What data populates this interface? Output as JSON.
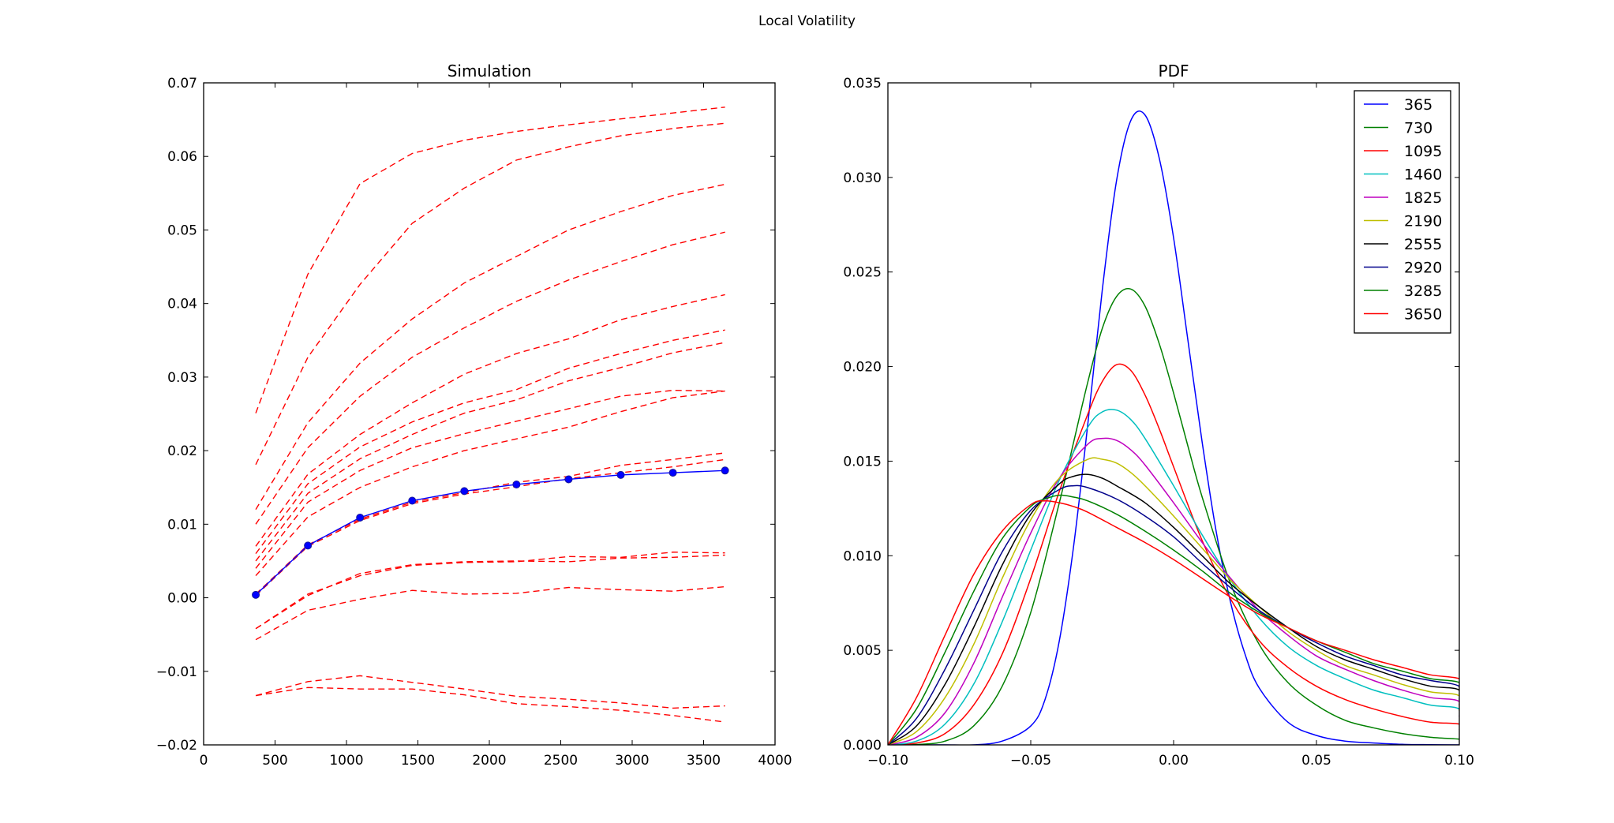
{
  "figure": {
    "title": "Local Volatility"
  },
  "chart_data": [
    {
      "type": "line",
      "title": "Simulation",
      "xlabel": "",
      "ylabel": "",
      "xlim": [
        0,
        4000
      ],
      "ylim": [
        -0.02,
        0.07
      ],
      "xticks": [
        0,
        500,
        1000,
        1500,
        2000,
        2500,
        3000,
        3500,
        4000
      ],
      "xtick_labels": [
        "0",
        "500",
        "1000",
        "1500",
        "2000",
        "2500",
        "3000",
        "3500",
        "4000"
      ],
      "yticks": [
        -0.02,
        -0.01,
        0.0,
        0.01,
        0.02,
        0.03,
        0.04,
        0.05,
        0.06,
        0.07
      ],
      "ytick_labels": [
        "−0.02",
        "−0.01",
        "0.00",
        "0.01",
        "0.02",
        "0.03",
        "0.04",
        "0.05",
        "0.06",
        "0.07"
      ],
      "grid": false,
      "x": [
        365,
        730,
        1095,
        1460,
        1825,
        2190,
        2555,
        2920,
        3285,
        3650
      ],
      "series": [
        {
          "style": "dashed",
          "color": "#ff0000",
          "values": [
            0.0251,
            0.044,
            0.0563,
            0.0604,
            0.0622,
            0.0634,
            0.0643,
            0.0651,
            0.0659,
            0.0667
          ]
        },
        {
          "style": "dashed",
          "color": "#ff0000",
          "values": [
            0.0181,
            0.0327,
            0.0426,
            0.0509,
            0.0557,
            0.0595,
            0.0613,
            0.0628,
            0.0638,
            0.0645
          ]
        },
        {
          "style": "dashed",
          "color": "#ff0000",
          "values": [
            0.012,
            0.0238,
            0.0319,
            0.0379,
            0.0428,
            0.0464,
            0.05,
            0.0525,
            0.0547,
            0.0562
          ]
        },
        {
          "style": "dashed",
          "color": "#ff0000",
          "values": [
            0.01,
            0.0204,
            0.0274,
            0.0327,
            0.0367,
            0.0403,
            0.0432,
            0.0457,
            0.048,
            0.0497
          ]
        },
        {
          "style": "dashed",
          "color": "#ff0000",
          "values": [
            0.007,
            0.0168,
            0.0222,
            0.0265,
            0.0304,
            0.0332,
            0.0352,
            0.0378,
            0.0396,
            0.0412
          ]
        },
        {
          "style": "dashed",
          "color": "#ff0000",
          "values": [
            0.006,
            0.0155,
            0.0205,
            0.0239,
            0.0265,
            0.0283,
            0.0312,
            0.0332,
            0.035,
            0.0364
          ]
        },
        {
          "style": "dashed",
          "color": "#ff0000",
          "values": [
            0.005,
            0.0142,
            0.0189,
            0.0222,
            0.0251,
            0.0269,
            0.0295,
            0.0313,
            0.0333,
            0.0347
          ]
        },
        {
          "style": "dashed",
          "color": "#ff0000",
          "values": [
            0.004,
            0.013,
            0.0173,
            0.0204,
            0.0223,
            0.024,
            0.0257,
            0.0274,
            0.0282,
            0.0281
          ]
        },
        {
          "style": "dashed",
          "color": "#ff0000",
          "values": [
            0.003,
            0.011,
            0.015,
            0.0178,
            0.02,
            0.0216,
            0.0232,
            0.0253,
            0.0272,
            0.0281
          ]
        },
        {
          "style": "dashed",
          "color": "#ff0000",
          "values": [
            0.0005,
            0.0072,
            0.0107,
            0.013,
            0.0143,
            0.0157,
            0.0165,
            0.018,
            0.0188,
            0.0197
          ]
        },
        {
          "style": "dashed",
          "color": "#ff0000",
          "values": [
            0.0003,
            0.007,
            0.0105,
            0.0128,
            0.0141,
            0.0151,
            0.0162,
            0.017,
            0.0178,
            0.0188
          ]
        },
        {
          "style": "dashed",
          "color": "#ff0000",
          "values": [
            -0.0042,
            0.0005,
            0.003,
            0.0044,
            0.0048,
            0.0049,
            0.0056,
            0.0055,
            0.0062,
            0.0061
          ]
        },
        {
          "style": "dashed",
          "color": "#ff0000",
          "values": [
            -0.0042,
            0.0003,
            0.0033,
            0.0045,
            0.0049,
            0.005,
            0.0049,
            0.0054,
            0.0055,
            0.0058
          ]
        },
        {
          "style": "dashed",
          "color": "#ff0000",
          "values": [
            -0.0057,
            -0.0017,
            -0.0002,
            0.001,
            0.0005,
            0.0006,
            0.0014,
            0.0011,
            0.0009,
            0.0015
          ]
        },
        {
          "style": "dashed",
          "color": "#ff0000",
          "values": [
            -0.0133,
            -0.0114,
            -0.0106,
            -0.0115,
            -0.0124,
            -0.0134,
            -0.0138,
            -0.0143,
            -0.015,
            -0.0147
          ]
        },
        {
          "style": "dashed",
          "color": "#ff0000",
          "values": [
            -0.0133,
            -0.0122,
            -0.0124,
            -0.0124,
            -0.0132,
            -0.0144,
            -0.0148,
            -0.0153,
            -0.016,
            -0.0169
          ]
        },
        {
          "style": "solid-markers",
          "color": "#0000ff",
          "marker_edge": "#1a1a99",
          "values": [
            0.0004,
            0.0071,
            0.0109,
            0.0132,
            0.0145,
            0.0154,
            0.0161,
            0.0167,
            0.017,
            0.0173
          ]
        }
      ]
    },
    {
      "type": "line",
      "title": "PDF",
      "xlabel": "",
      "ylabel": "",
      "xlim": [
        -0.1,
        0.1
      ],
      "ylim": [
        0.0,
        0.035
      ],
      "xticks": [
        -0.1,
        -0.05,
        0.0,
        0.05,
        0.1
      ],
      "xtick_labels": [
        "−0.10",
        "−0.05",
        "0.00",
        "0.05",
        "0.10"
      ],
      "yticks": [
        0.0,
        0.005,
        0.01,
        0.015,
        0.02,
        0.025,
        0.03,
        0.035
      ],
      "ytick_labels": [
        "0.000",
        "0.005",
        "0.010",
        "0.015",
        "0.020",
        "0.025",
        "0.030",
        "0.035"
      ],
      "grid": false,
      "legend": "top-right",
      "series": [
        {
          "name": "365",
          "color": "#0000ff",
          "peak_x": -0.0095,
          "peak_y": 0.0334,
          "x": [
            -0.1,
            -0.09,
            -0.08,
            -0.07,
            -0.06,
            -0.05,
            -0.045,
            -0.04,
            -0.035,
            -0.03,
            -0.025,
            -0.02,
            -0.015,
            -0.01,
            -0.005,
            0.0,
            0.005,
            0.01,
            0.015,
            0.02,
            0.025,
            0.03,
            0.04,
            0.05,
            0.06,
            0.07,
            0.08,
            0.09,
            0.1
          ],
          "y": [
            0,
            0,
            0,
            0,
            0.0002,
            0.001,
            0.0024,
            0.0055,
            0.0105,
            0.017,
            0.024,
            0.0298,
            0.033,
            0.0333,
            0.031,
            0.0268,
            0.0214,
            0.016,
            0.0112,
            0.0075,
            0.0048,
            0.003,
            0.0012,
            0.0005,
            0.0002,
            0.0001,
            3e-05,
            1e-05,
            0.0
          ]
        },
        {
          "name": "730",
          "color": "#008000",
          "x": [
            -0.1,
            -0.09,
            -0.08,
            -0.07,
            -0.06,
            -0.05,
            -0.04,
            -0.035,
            -0.03,
            -0.025,
            -0.02,
            -0.015,
            -0.01,
            -0.005,
            0.0,
            0.005,
            0.01,
            0.02,
            0.03,
            0.04,
            0.05,
            0.06,
            0.07,
            0.08,
            0.09,
            0.0999,
            0.1
          ],
          "y": [
            0,
            2e-05,
            0.0002,
            0.001,
            0.0031,
            0.007,
            0.0128,
            0.016,
            0.0192,
            0.022,
            0.0237,
            0.0241,
            0.0232,
            0.0212,
            0.0186,
            0.0158,
            0.0131,
            0.0085,
            0.0053,
            0.0033,
            0.0021,
            0.0013,
            0.0009,
            0.0006,
            0.0004,
            0.0003,
            0.0002
          ]
        },
        {
          "name": "1095",
          "color": "#ff0000",
          "x": [
            -0.1,
            -0.09,
            -0.08,
            -0.07,
            -0.06,
            -0.05,
            -0.04,
            -0.03,
            -0.025,
            -0.02,
            -0.015,
            -0.01,
            -0.005,
            0.0,
            0.01,
            0.02,
            0.03,
            0.04,
            0.05,
            0.06,
            0.07,
            0.08,
            0.09,
            0.0999,
            0.1
          ],
          "y": [
            0,
            0.0001,
            0.0006,
            0.0021,
            0.0048,
            0.0088,
            0.0134,
            0.0175,
            0.0192,
            0.0201,
            0.0198,
            0.0185,
            0.0167,
            0.0147,
            0.0108,
            0.0077,
            0.0055,
            0.0041,
            0.0031,
            0.0024,
            0.0019,
            0.0015,
            0.0012,
            0.0011,
            0.0008
          ]
        },
        {
          "name": "1460",
          "color": "#00bfbf",
          "x": [
            -0.1,
            -0.09,
            -0.08,
            -0.07,
            -0.06,
            -0.05,
            -0.04,
            -0.03,
            -0.025,
            -0.02,
            -0.015,
            -0.01,
            0.0,
            0.01,
            0.02,
            0.03,
            0.04,
            0.05,
            0.06,
            0.07,
            0.08,
            0.09,
            0.0999,
            0.1
          ],
          "y": [
            0,
            0.0002,
            0.0011,
            0.0032,
            0.0065,
            0.0103,
            0.014,
            0.0168,
            0.0176,
            0.0177,
            0.0172,
            0.0162,
            0.0137,
            0.0111,
            0.0087,
            0.0067,
            0.0052,
            0.0042,
            0.0035,
            0.0029,
            0.0025,
            0.0021,
            0.0019,
            0.0011
          ]
        },
        {
          "name": "1825",
          "color": "#bf00bf",
          "x": [
            -0.1,
            -0.09,
            -0.08,
            -0.07,
            -0.06,
            -0.05,
            -0.04,
            -0.03,
            -0.025,
            -0.02,
            -0.015,
            -0.01,
            0.0,
            0.01,
            0.02,
            0.03,
            0.04,
            0.05,
            0.06,
            0.07,
            0.08,
            0.09,
            0.0999,
            0.1
          ],
          "y": [
            0,
            0.0004,
            0.0017,
            0.0043,
            0.0078,
            0.0112,
            0.0141,
            0.0159,
            0.0162,
            0.0161,
            0.0156,
            0.0148,
            0.0128,
            0.0107,
            0.0088,
            0.0071,
            0.0058,
            0.0047,
            0.004,
            0.0034,
            0.0029,
            0.0025,
            0.0023,
            0.0015
          ]
        },
        {
          "name": "2190",
          "color": "#bfbf00",
          "x": [
            -0.1,
            -0.09,
            -0.08,
            -0.07,
            -0.06,
            -0.05,
            -0.04,
            -0.03,
            -0.025,
            -0.02,
            -0.015,
            -0.01,
            0.0,
            0.01,
            0.02,
            0.03,
            0.04,
            0.05,
            0.06,
            0.07,
            0.08,
            0.09,
            0.0999,
            0.1
          ],
          "y": [
            0,
            0.0007,
            0.0025,
            0.0053,
            0.0088,
            0.0119,
            0.0141,
            0.0151,
            0.0151,
            0.0149,
            0.0144,
            0.0137,
            0.0121,
            0.0104,
            0.0087,
            0.0073,
            0.006,
            0.005,
            0.0042,
            0.0037,
            0.0032,
            0.0028,
            0.0026,
            0.0018
          ]
        },
        {
          "name": "2555",
          "color": "#000000",
          "x": [
            -0.1,
            -0.09,
            -0.08,
            -0.07,
            -0.06,
            -0.05,
            -0.04,
            -0.035,
            -0.03,
            -0.025,
            -0.02,
            -0.01,
            0.0,
            0.01,
            0.02,
            0.03,
            0.04,
            0.05,
            0.06,
            0.07,
            0.08,
            0.09,
            0.0999,
            0.1
          ],
          "y": [
            0,
            0.001,
            0.0032,
            0.0062,
            0.0095,
            0.0122,
            0.0138,
            0.0142,
            0.0143,
            0.0141,
            0.0137,
            0.0128,
            0.0115,
            0.01,
            0.0085,
            0.0073,
            0.0062,
            0.0052,
            0.0045,
            0.004,
            0.0035,
            0.0031,
            0.0029,
            0.0021
          ]
        },
        {
          "name": "2920",
          "color": "#00008b",
          "x": [
            -0.1,
            -0.09,
            -0.08,
            -0.07,
            -0.06,
            -0.05,
            -0.04,
            -0.035,
            -0.03,
            -0.02,
            -0.01,
            0.0,
            0.01,
            0.02,
            0.03,
            0.04,
            0.05,
            0.06,
            0.07,
            0.08,
            0.09,
            0.0999,
            0.1
          ],
          "y": [
            0,
            0.0014,
            0.004,
            0.0071,
            0.0102,
            0.0124,
            0.0135,
            0.0137,
            0.0136,
            0.013,
            0.0121,
            0.011,
            0.0096,
            0.0083,
            0.0071,
            0.0062,
            0.0054,
            0.0047,
            0.0042,
            0.0037,
            0.0034,
            0.0031,
            0.0024
          ]
        },
        {
          "name": "3285",
          "color": "#008000",
          "x": [
            -0.1,
            -0.09,
            -0.08,
            -0.07,
            -0.06,
            -0.05,
            -0.045,
            -0.04,
            -0.035,
            -0.03,
            -0.02,
            -0.01,
            0.0,
            0.01,
            0.02,
            0.03,
            0.04,
            0.05,
            0.06,
            0.07,
            0.08,
            0.09,
            0.0999,
            0.1
          ],
          "y": [
            0,
            0.0019,
            0.0049,
            0.0081,
            0.0109,
            0.0126,
            0.013,
            0.0132,
            0.0131,
            0.0129,
            0.0122,
            0.0113,
            0.0103,
            0.0092,
            0.008,
            0.007,
            0.0062,
            0.0055,
            0.0049,
            0.0043,
            0.0039,
            0.0035,
            0.0033,
            0.0027
          ]
        },
        {
          "name": "3650",
          "color": "#ff0000",
          "x": [
            -0.1,
            -0.09,
            -0.08,
            -0.07,
            -0.06,
            -0.05,
            -0.045,
            -0.04,
            -0.035,
            -0.03,
            -0.02,
            -0.01,
            0.0,
            0.01,
            0.02,
            0.03,
            0.04,
            0.05,
            0.06,
            0.07,
            0.08,
            0.09,
            0.0999,
            0.1
          ],
          "y": [
            0,
            0.0025,
            0.0058,
            0.009,
            0.0113,
            0.0127,
            0.0129,
            0.0128,
            0.0126,
            0.0123,
            0.0115,
            0.0107,
            0.0098,
            0.0088,
            0.0078,
            0.0069,
            0.0062,
            0.0055,
            0.005,
            0.0045,
            0.0041,
            0.0037,
            0.0035,
            0.003
          ]
        }
      ]
    }
  ]
}
